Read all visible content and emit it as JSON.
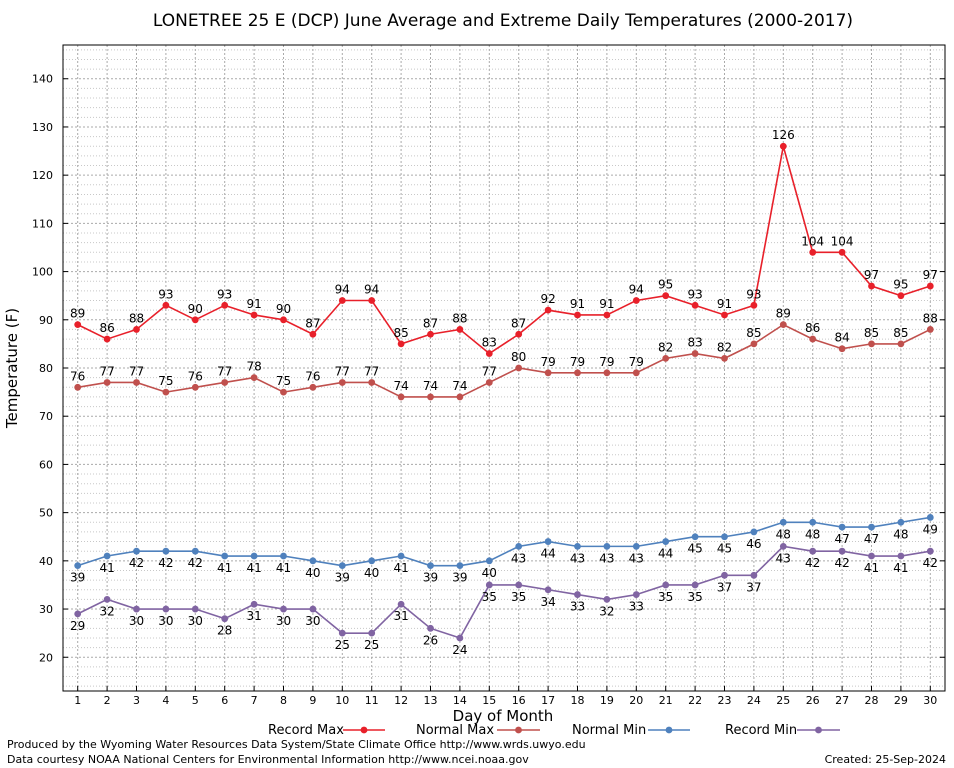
{
  "chart_data": {
    "type": "line",
    "title": "LONETREE 25 E (DCP) June Average and Extreme Daily Temperatures (2000-2017)",
    "xlabel": "Day of Month",
    "ylabel": "Temperature (F)",
    "x": [
      1,
      2,
      3,
      4,
      5,
      6,
      7,
      8,
      9,
      10,
      11,
      12,
      13,
      14,
      15,
      16,
      17,
      18,
      19,
      20,
      21,
      22,
      23,
      24,
      25,
      26,
      27,
      28,
      29,
      30
    ],
    "xlim": [
      0.5,
      30.5
    ],
    "ylim": [
      13,
      147
    ],
    "yticks": [
      20,
      30,
      40,
      50,
      60,
      70,
      80,
      90,
      100,
      110,
      120,
      130,
      140
    ],
    "grid": true,
    "legend_position": "bottom",
    "series": [
      {
        "name": "Record Max",
        "color": "#e8202a",
        "label_pos": "above",
        "values": [
          89,
          86,
          88,
          93,
          90,
          93,
          91,
          90,
          87,
          94,
          94,
          85,
          87,
          88,
          83,
          87,
          92,
          91,
          91,
          94,
          95,
          93,
          91,
          93,
          126,
          104,
          104,
          97,
          95,
          97
        ]
      },
      {
        "name": "Normal Max",
        "color": "#c0504d",
        "label_pos": "above",
        "values": [
          76,
          77,
          77,
          75,
          76,
          77,
          78,
          75,
          76,
          77,
          77,
          74,
          74,
          74,
          77,
          80,
          79,
          79,
          79,
          79,
          82,
          83,
          82,
          85,
          89,
          86,
          84,
          85,
          85,
          88
        ]
      },
      {
        "name": "Normal Min",
        "color": "#4f81bd",
        "label_pos": "below",
        "values": [
          39,
          41,
          42,
          42,
          42,
          41,
          41,
          41,
          40,
          39,
          40,
          41,
          39,
          39,
          40,
          43,
          44,
          43,
          43,
          43,
          44,
          45,
          45,
          46,
          48,
          48,
          47,
          47,
          48,
          49
        ]
      },
      {
        "name": "Record Min",
        "color": "#8064a2",
        "label_pos": "below",
        "values": [
          29,
          32,
          30,
          30,
          30,
          28,
          31,
          30,
          30,
          25,
          25,
          31,
          26,
          24,
          35,
          35,
          34,
          33,
          32,
          33,
          35,
          35,
          37,
          37,
          43,
          42,
          42,
          41,
          41,
          42
        ]
      }
    ]
  },
  "footer": {
    "produced_by": "Produced by the Wyoming Water Resources Data System/State Climate Office http://www.wrds.uwyo.edu",
    "courtesy": "Data courtesy NOAA National Centers for Environmental Information http://www.ncei.noaa.gov",
    "created": "Created:  25-Sep-2024"
  }
}
